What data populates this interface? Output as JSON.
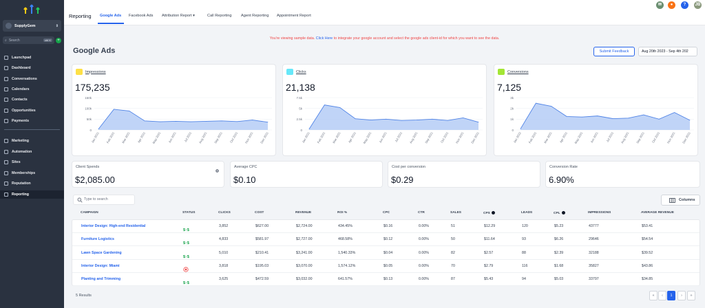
{
  "sidebar": {
    "account": "SupplyGem",
    "search_placeholder": "Search",
    "search_shortcut": "ctrl K",
    "items": [
      "Launchpad",
      "Dashboard",
      "Conversations",
      "Calendars",
      "Contacts",
      "Opportunities",
      "Payments"
    ],
    "items2": [
      "Marketing",
      "Automation",
      "Sites",
      "Memberships",
      "Reputation",
      "Reporting"
    ]
  },
  "topbar": {
    "title": "Reporting",
    "tabs": [
      "Google Ads",
      "Facebook Ads",
      "Attribution Report",
      "Call Reporting",
      "Agent Reporting",
      "Appointment Report"
    ],
    "active_tab": "Google Ads",
    "user_initials": "JB",
    "help_label": "?"
  },
  "notice": {
    "before": "You're viewing sample data.",
    "link": "Click Here",
    "after": "to integrate your google account and select the google ads client-id for which you want to see the data."
  },
  "page": {
    "title": "Google Ads",
    "feedback_button": "Submit Feedback",
    "date_range": "Aug 20th 2023 - Sep 4th 202"
  },
  "metrics": [
    {
      "label": "Impressions",
      "value": "175,235",
      "badge_color": "#fde047",
      "line_color": "#4f83e6",
      "fill_color": "#b5cdf6",
      "yticks": [
        "0",
        "50k",
        "100k",
        "150k"
      ],
      "ymax": 150000,
      "points": [
        4000,
        96000,
        88000,
        42000,
        38000,
        40000,
        38000,
        40000,
        42000,
        39000,
        46000,
        36000
      ]
    },
    {
      "label": "Clicks",
      "value": "21,138",
      "badge_color": "#67e8f9",
      "line_color": "#4f83e6",
      "fill_color": "#b5cdf6",
      "yticks": [
        "0",
        "2.5k",
        "5k",
        "7.5k"
      ],
      "ymax": 7500,
      "points": [
        200,
        5800,
        5200,
        2600,
        2300,
        2500,
        2200,
        2300,
        2500,
        2200,
        2800,
        1800
      ]
    },
    {
      "label": "Conversions",
      "value": "7,125",
      "badge_color": "#a3e635",
      "line_color": "#4f83e6",
      "fill_color": "#b5cdf6",
      "yticks": [
        "0",
        "1k",
        "2k",
        "3k"
      ],
      "ymax": 3000,
      "points": [
        100,
        2480,
        2200,
        1250,
        1200,
        1300,
        1050,
        1100,
        1400,
        1000,
        1620,
        900
      ]
    }
  ],
  "months": [
    "Jan 2021",
    "Feb 2021",
    "Mar 2021",
    "Apr 2021",
    "May 2021",
    "Jun 2021",
    "Jul 2021",
    "Aug 2021",
    "Sep 2021",
    "Oct 2021",
    "Nov 2021",
    "Dec 2021"
  ],
  "months_last": [
    "Jan 2022",
    "Feb 2021",
    "Mar 2021",
    "Apr 2021",
    "May 2021",
    "Jun 2021",
    "Jul 2021",
    "Aug 2021",
    "Sep 2021",
    "Oct 2021",
    "Nov 2021",
    "Dec 2021"
  ],
  "stats": [
    {
      "label": "Client Spends",
      "value": "$2,085.00"
    },
    {
      "label": "Average CPC",
      "value": "$0.10"
    },
    {
      "label": "Cost per conversion",
      "value": "$0.29"
    },
    {
      "label": "Conversion Rate",
      "value": "6.90%"
    }
  ],
  "table": {
    "search_placeholder": "Type to search",
    "columns_button": "Columns",
    "headers": [
      "CAMPAIGN",
      "STATUS",
      "CLICKS",
      "COST",
      "REVENUE",
      "ROI %",
      "CPC",
      "CTR",
      "SALES",
      "CPS",
      "LEADS",
      "CPL",
      "IMPRESSIONS",
      "AVERAGE REVENUE"
    ],
    "rows": [
      {
        "name": "Interior Design: High-end Residential",
        "status": "on",
        "clicks": "3,852",
        "cost": "$627.00",
        "revenue": "$2,724.00",
        "roi": "434.45%",
        "cpc": "$0.16",
        "ctr": "0.00%",
        "sales": "51",
        "cps": "$12.29",
        "leads": "120",
        "cpl": "$5.23",
        "impressions": "43777",
        "avg_revenue": "$53.41"
      },
      {
        "name": "Furniture Logistics",
        "status": "on",
        "clicks": "4,833",
        "cost": "$581.97",
        "revenue": "$2,727.00",
        "roi": "468.58%",
        "cpc": "$0.12",
        "ctr": "0.00%",
        "sales": "50",
        "cps": "$11.64",
        "leads": "93",
        "cpl": "$6.26",
        "impressions": "29646",
        "avg_revenue": "$54.54"
      },
      {
        "name": "Lawn Space Gardening",
        "status": "on",
        "clicks": "5,010",
        "cost": "$210.41",
        "revenue": "$3,241.00",
        "roi": "1,540.33%",
        "cpc": "$0.04",
        "ctr": "0.00%",
        "sales": "82",
        "cps": "$2.57",
        "leads": "88",
        "cpl": "$2.39",
        "impressions": "32188",
        "avg_revenue": "$39.52"
      },
      {
        "name": "Interior Design: Miami",
        "status": "off",
        "clicks": "3,818",
        "cost": "$195.03",
        "revenue": "$3,070.00",
        "roi": "1,574.12%",
        "cpc": "$0.05",
        "ctr": "0.00%",
        "sales": "70",
        "cps": "$2.79",
        "leads": "116",
        "cpl": "$1.68",
        "impressions": "35827",
        "avg_revenue": "$43.86"
      },
      {
        "name": "Planting and Trimming",
        "status": "on",
        "clicks": "3,625",
        "cost": "$472.59",
        "revenue": "$3,032.00",
        "roi": "641.57%",
        "cpc": "$0.13",
        "ctr": "0.00%",
        "sales": "87",
        "cps": "$5.43",
        "leads": "94",
        "cpl": "$5.03",
        "impressions": "33797",
        "avg_revenue": "$34.85"
      }
    ],
    "results_text": "5 Results",
    "pagination": [
      "«",
      "‹",
      "1",
      "›",
      "»"
    ],
    "current_page": "1"
  },
  "colors": {
    "accent": "#2563eb",
    "sidebar": "#2a3240",
    "status_on": "#16a34a",
    "status_off": "#ef4444"
  }
}
